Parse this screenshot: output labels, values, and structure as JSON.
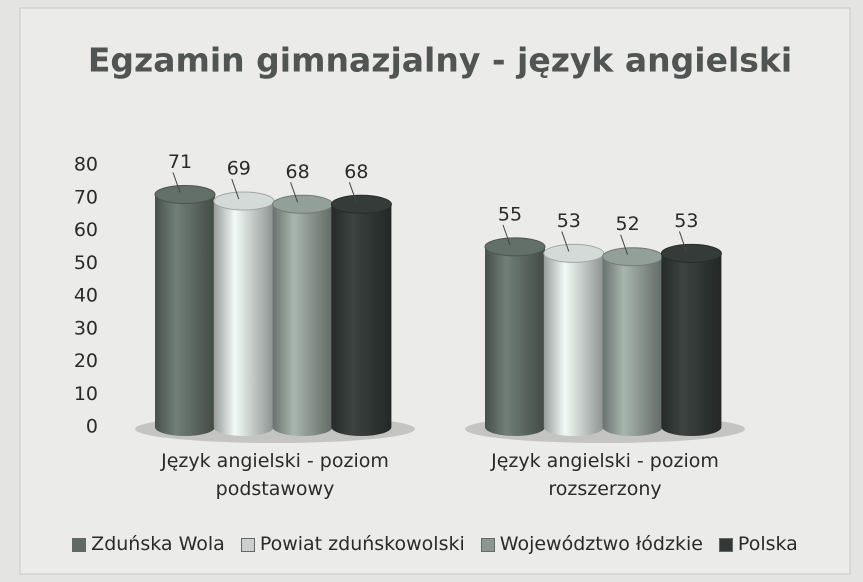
{
  "chart_data": {
    "type": "bar",
    "title": "Egzamin gimnazjalny - język angielski",
    "categories": [
      "Język angielski - poziom podstawowy",
      "Język angielski - poziom rozszerzony"
    ],
    "series": [
      {
        "name": "Zduńska Wola",
        "color": "#5e6a64",
        "values": [
          71,
          55
        ]
      },
      {
        "name": "Powiat zduńskowolski",
        "color": "#c9d0cd",
        "values": [
          69,
          53
        ]
      },
      {
        "name": "Województwo łódzkie",
        "color": "#8c9792",
        "values": [
          68,
          52
        ]
      },
      {
        "name": "Polska",
        "color": "#323836",
        "values": [
          68,
          53
        ]
      }
    ],
    "ylim": [
      0,
      80
    ],
    "yticks": [
      0,
      10,
      20,
      30,
      40,
      50,
      60,
      70,
      80
    ],
    "grid": false,
    "legend": "bottom"
  }
}
